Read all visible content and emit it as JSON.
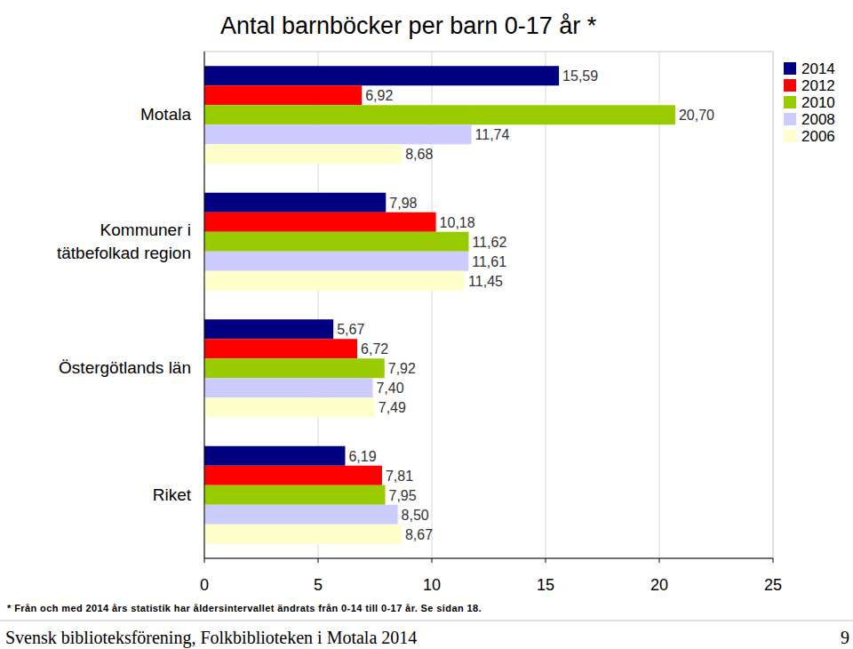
{
  "chart_data": {
    "type": "bar",
    "title": "Antal barnböcker per barn 0-17 år *",
    "orientation": "horizontal",
    "categories": [
      "Motala",
      "Kommuner i tätbefolkad region",
      "Östergötlands län",
      "Riket"
    ],
    "series": [
      {
        "name": "2014",
        "color": "#000080",
        "values": [
          15.59,
          7.98,
          5.67,
          6.19
        ],
        "value_labels": [
          "15,59",
          "7,98",
          "5,67",
          "6,19"
        ]
      },
      {
        "name": "2012",
        "color": "#ff0000",
        "values": [
          6.92,
          10.18,
          6.72,
          7.81
        ],
        "value_labels": [
          "6,92",
          "10,18",
          "6,72",
          "7,81"
        ]
      },
      {
        "name": "2010",
        "color": "#99cc00",
        "values": [
          20.7,
          11.62,
          7.92,
          7.95
        ],
        "value_labels": [
          "20,70",
          "11,62",
          "7,92",
          "7,95"
        ]
      },
      {
        "name": "2008",
        "color": "#ccccff",
        "values": [
          11.74,
          11.61,
          7.4,
          8.5
        ],
        "value_labels": [
          "11,74",
          "11,61",
          "7,40",
          "8,50"
        ]
      },
      {
        "name": "2006",
        "color": "#ffffcc",
        "values": [
          8.68,
          11.45,
          7.49,
          8.67
        ],
        "value_labels": [
          "8,68",
          "11,45",
          "7,49",
          "8,67"
        ]
      }
    ],
    "xlim": [
      0,
      25
    ],
    "xticks": [
      0,
      5,
      10,
      15,
      20,
      25
    ],
    "grid": true,
    "legend": "top-right",
    "data_labels": true,
    "footnote": "* Från och med 2014 års statistik har åldersintervallet ändrats från 0-14 till 0-17 år. Se sidan 18."
  },
  "page_footer": {
    "text": "Svensk biblioteksförening, Folkbiblioteken i Motala 2014",
    "page_number": 9
  }
}
